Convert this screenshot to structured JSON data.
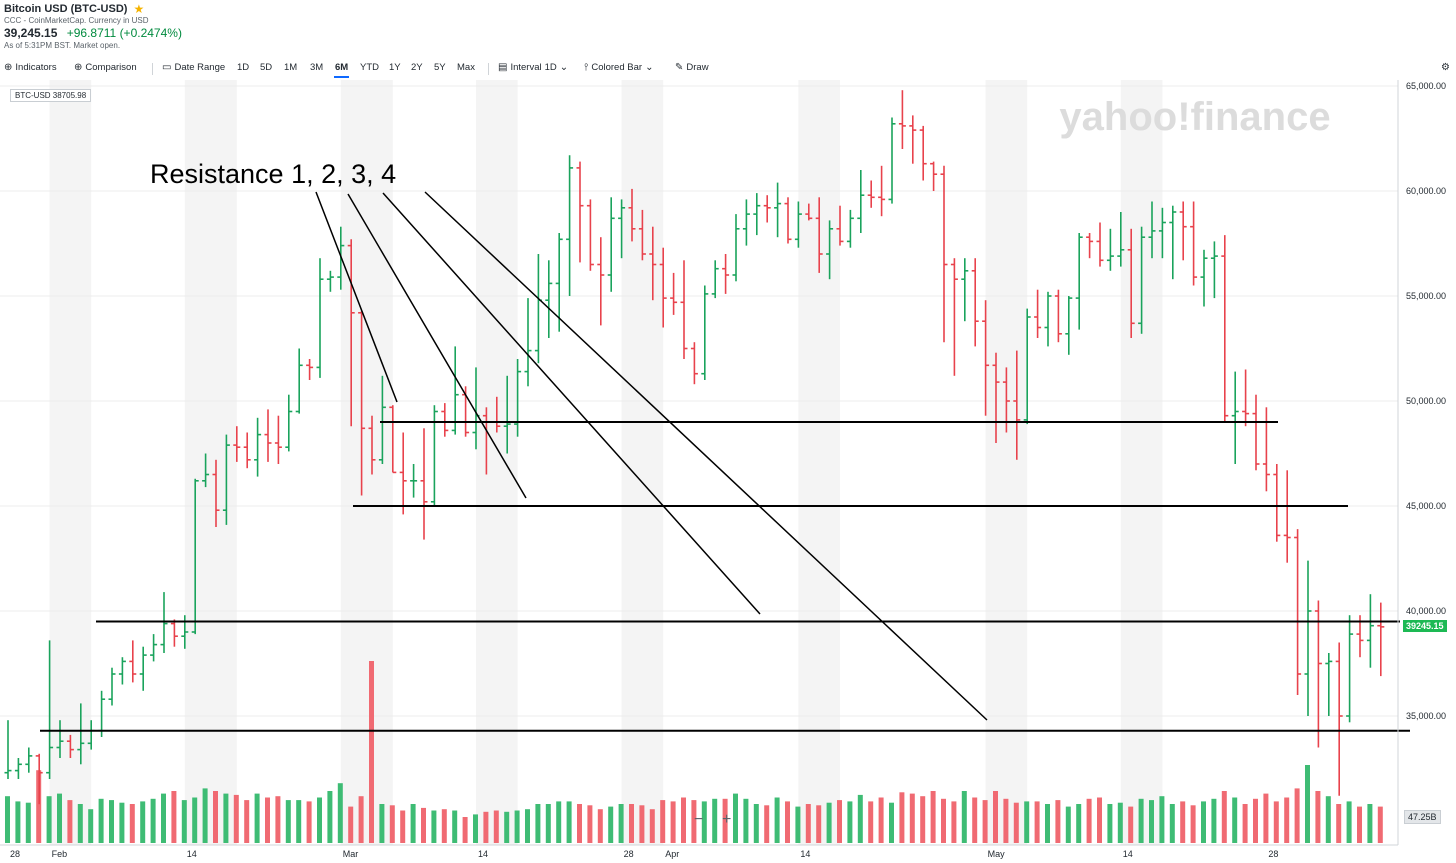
{
  "header": {
    "title": "Bitcoin USD (BTC-USD)",
    "source": "CCC - CoinMarketCap. Currency in USD",
    "price": "39,245.15",
    "change": "+96.8711 (+0.2474%)",
    "note": "As of 5:31PM BST. Market open."
  },
  "toolbar": {
    "indicators": "Indicators",
    "comparison": "Comparison",
    "date_range": "Date Range",
    "ranges": [
      "1D",
      "5D",
      "1M",
      "3M",
      "6M",
      "YTD",
      "1Y",
      "2Y",
      "5Y",
      "Max"
    ],
    "active_range": "6M",
    "interval_label": "Interval",
    "interval_value": "1D",
    "chart_type": "Colored Bar",
    "draw": "Draw"
  },
  "colors": {
    "up": "#1aa35c",
    "down": "#e8424c",
    "accent": "#0f69ff",
    "band": "#f4f4f4"
  },
  "watermark": "yahoo!finance",
  "chart_data": {
    "type": "ohlc",
    "symbol_badge": "BTC-USD 38705.98",
    "last_price_tag": "39245.15",
    "volume_tag": "47.25B",
    "ylim": [
      30000,
      65000
    ],
    "y_ticks": [
      "65,000.00",
      "60,000.00",
      "55,000.00",
      "50,000.00",
      "45,000.00",
      "40,000.00",
      "35,000.00"
    ],
    "y_tick_values": [
      65000,
      60000,
      55000,
      50000,
      45000,
      40000,
      35000
    ],
    "x_labels": [
      "28",
      "Feb",
      "14",
      "Mar",
      "14",
      "28",
      "Apr",
      "14",
      "May",
      "14",
      "28"
    ],
    "x_label_days": [
      0,
      4,
      17,
      32,
      45,
      59,
      63,
      76,
      94,
      107,
      121
    ],
    "shaded_day_ranges": [
      [
        4,
        8
      ],
      [
        17,
        22
      ],
      [
        32,
        37
      ],
      [
        45,
        49
      ],
      [
        59,
        63
      ],
      [
        76,
        80
      ],
      [
        94,
        98
      ],
      [
        107,
        111
      ]
    ],
    "annotation_text": "Resistance 1, 2, 3, 4",
    "resistance_levels": [
      49000,
      45000,
      39500,
      34300
    ],
    "bars": [
      [
        0,
        32300,
        34800,
        32000,
        32400
      ],
      [
        1,
        32400,
        33000,
        32000,
        32700
      ],
      [
        2,
        32700,
        33500,
        32300,
        33100
      ],
      [
        3,
        33100,
        33200,
        30800,
        32300
      ],
      [
        4,
        32300,
        38600,
        32000,
        33500
      ],
      [
        5,
        33500,
        34800,
        33000,
        33800
      ],
      [
        6,
        33800,
        34100,
        33000,
        33400
      ],
      [
        7,
        33400,
        35600,
        32700,
        33700
      ],
      [
        8,
        33700,
        34800,
        33400,
        34300
      ],
      [
        9,
        34300,
        36200,
        34000,
        35800
      ],
      [
        10,
        35800,
        37300,
        35500,
        37000
      ],
      [
        11,
        37000,
        37800,
        36500,
        37600
      ],
      [
        12,
        37600,
        38600,
        36600,
        37000
      ],
      [
        13,
        37000,
        38300,
        36200,
        37900
      ],
      [
        14,
        37900,
        38900,
        37600,
        38400
      ],
      [
        15,
        38400,
        40900,
        38000,
        39400
      ],
      [
        16,
        39400,
        39600,
        38300,
        38800
      ],
      [
        17,
        38800,
        39800,
        38200,
        39000
      ],
      [
        18,
        39000,
        46300,
        38900,
        46200
      ],
      [
        19,
        46200,
        47500,
        45900,
        46500
      ],
      [
        20,
        46500,
        47200,
        44000,
        44800
      ],
      [
        21,
        44800,
        48400,
        44100,
        47900
      ],
      [
        22,
        47900,
        48800,
        47100,
        47800
      ],
      [
        23,
        47800,
        48500,
        46800,
        47200
      ],
      [
        24,
        47200,
        49200,
        46400,
        48400
      ],
      [
        25,
        48400,
        49600,
        47100,
        48000
      ],
      [
        26,
        48000,
        49300,
        47000,
        47800
      ],
      [
        27,
        47800,
        50300,
        47600,
        49500
      ],
      [
        28,
        49500,
        52500,
        49400,
        51700
      ],
      [
        29,
        51700,
        52000,
        51000,
        51600
      ],
      [
        30,
        51600,
        56800,
        51100,
        55800
      ],
      [
        31,
        55800,
        56200,
        55200,
        55900
      ],
      [
        32,
        55900,
        58300,
        55300,
        57400
      ],
      [
        33,
        57400,
        57700,
        48800,
        54200
      ],
      [
        34,
        54200,
        54300,
        45500,
        48700
      ],
      [
        35,
        48700,
        49300,
        46500,
        47200
      ],
      [
        36,
        47200,
        51200,
        47000,
        49700
      ],
      [
        37,
        49700,
        49800,
        46600,
        46600
      ],
      [
        38,
        46600,
        48500,
        44600,
        46200
      ],
      [
        39,
        46200,
        47000,
        45400,
        46200
      ],
      [
        40,
        46200,
        48700,
        43400,
        45200
      ],
      [
        41,
        45200,
        49800,
        45000,
        49500
      ],
      [
        42,
        49500,
        49900,
        48300,
        48600
      ],
      [
        43,
        48600,
        52600,
        48400,
        50300
      ],
      [
        44,
        50300,
        50700,
        48300,
        48500
      ],
      [
        45,
        48500,
        51600,
        47700,
        49300
      ],
      [
        46,
        49300,
        49700,
        46500,
        49000
      ],
      [
        47,
        49000,
        50200,
        48500,
        48800
      ],
      [
        48,
        48800,
        51200,
        47500,
        48900
      ],
      [
        49,
        48900,
        52000,
        48300,
        51400
      ],
      [
        50,
        51400,
        54900,
        50700,
        52400
      ],
      [
        51,
        52400,
        57000,
        51800,
        54800
      ],
      [
        52,
        54800,
        56700,
        53000,
        55600
      ],
      [
        53,
        55600,
        58000,
        53300,
        57700
      ],
      [
        54,
        57700,
        61700,
        55000,
        61100
      ],
      [
        55,
        61100,
        61400,
        56600,
        59300
      ],
      [
        56,
        59300,
        59600,
        56200,
        56500
      ],
      [
        57,
        56500,
        57800,
        53600,
        56000
      ],
      [
        58,
        56000,
        59700,
        55200,
        58700
      ],
      [
        59,
        58700,
        59600,
        56800,
        59200
      ],
      [
        60,
        59200,
        60100,
        57600,
        58200
      ],
      [
        61,
        58200,
        59100,
        56700,
        57000
      ],
      [
        62,
        57000,
        58300,
        54800,
        56500
      ],
      [
        63,
        56500,
        57300,
        53500,
        54900
      ],
      [
        64,
        54900,
        56100,
        54100,
        54700
      ],
      [
        65,
        54700,
        56700,
        52000,
        52500
      ],
      [
        66,
        52500,
        52800,
        50800,
        51300
      ],
      [
        67,
        51300,
        55500,
        51000,
        55100
      ],
      [
        68,
        55100,
        56700,
        54900,
        56300
      ],
      [
        69,
        56300,
        57000,
        55100,
        56000
      ],
      [
        70,
        56000,
        58900,
        55700,
        58200
      ],
      [
        71,
        58200,
        59600,
        57400,
        58900
      ],
      [
        72,
        58900,
        59900,
        57900,
        59300
      ],
      [
        73,
        59300,
        59800,
        58500,
        59200
      ],
      [
        74,
        59200,
        60400,
        57800,
        59400
      ],
      [
        75,
        59400,
        59700,
        57500,
        57700
      ],
      [
        76,
        57700,
        59500,
        57300,
        58900
      ],
      [
        77,
        58900,
        59400,
        58600,
        58700
      ],
      [
        78,
        58700,
        59700,
        56100,
        57000
      ],
      [
        79,
        57000,
        58600,
        55800,
        58200
      ],
      [
        80,
        58200,
        59300,
        57400,
        57600
      ],
      [
        81,
        57600,
        59100,
        57300,
        58700
      ],
      [
        82,
        58700,
        61000,
        58000,
        59800
      ],
      [
        83,
        59800,
        60500,
        59200,
        59700
      ],
      [
        84,
        59700,
        61200,
        58800,
        59600
      ],
      [
        85,
        59600,
        63500,
        59400,
        63200
      ],
      [
        86,
        63200,
        64800,
        62000,
        63100
      ],
      [
        87,
        63100,
        63600,
        61300,
        62900
      ],
      [
        88,
        62900,
        63100,
        60500,
        61300
      ],
      [
        89,
        61300,
        61400,
        60000,
        60800
      ],
      [
        90,
        60800,
        61200,
        52800,
        56500
      ],
      [
        91,
        56500,
        56800,
        51200,
        55800
      ],
      [
        92,
        55800,
        56800,
        53800,
        56200
      ],
      [
        93,
        56200,
        56800,
        52600,
        53800
      ],
      [
        94,
        53800,
        54800,
        49300,
        51700
      ],
      [
        95,
        51700,
        52300,
        48000,
        50900
      ],
      [
        96,
        50900,
        51600,
        48500,
        50000
      ],
      [
        97,
        50000,
        52400,
        47200,
        49100
      ],
      [
        98,
        49100,
        54400,
        48900,
        54000
      ],
      [
        99,
        54000,
        55300,
        53000,
        53500
      ],
      [
        100,
        53500,
        55200,
        52600,
        55000
      ],
      [
        101,
        55000,
        55300,
        52800,
        53200
      ],
      [
        102,
        53200,
        55000,
        52200,
        54900
      ],
      [
        103,
        54900,
        58000,
        53400,
        57800
      ],
      [
        104,
        57800,
        58000,
        56800,
        57600
      ],
      [
        105,
        57600,
        58500,
        56400,
        56700
      ],
      [
        106,
        56700,
        58200,
        56200,
        56900
      ],
      [
        107,
        56900,
        59000,
        56400,
        57200
      ],
      [
        108,
        57200,
        58200,
        53000,
        53700
      ],
      [
        109,
        53700,
        58300,
        53200,
        57800
      ],
      [
        110,
        57800,
        59500,
        56800,
        58100
      ],
      [
        111,
        58100,
        59200,
        56800,
        58500
      ],
      [
        112,
        58500,
        59300,
        55800,
        59000
      ],
      [
        113,
        59000,
        59500,
        56700,
        58300
      ],
      [
        114,
        58300,
        59500,
        55500,
        55900
      ],
      [
        115,
        55900,
        57200,
        54500,
        56800
      ],
      [
        116,
        56800,
        57600,
        54900,
        56900
      ],
      [
        117,
        56900,
        57900,
        49000,
        49300
      ],
      [
        118,
        49300,
        51400,
        47000,
        49500
      ],
      [
        119,
        49500,
        51500,
        48800,
        49400
      ],
      [
        120,
        49400,
        50300,
        46700,
        47000
      ],
      [
        121,
        47000,
        49700,
        45700,
        46500
      ],
      [
        122,
        46500,
        47000,
        43300,
        43600
      ],
      [
        123,
        43600,
        46700,
        42300,
        43500
      ],
      [
        124,
        43500,
        43900,
        36000,
        37000
      ],
      [
        125,
        37000,
        42400,
        35000,
        40000
      ],
      [
        126,
        40000,
        40500,
        33500,
        37500
      ],
      [
        127,
        37500,
        38000,
        35000,
        37600
      ],
      [
        128,
        37600,
        38500,
        31200,
        35000
      ],
      [
        129,
        35000,
        39800,
        34700,
        38900
      ],
      [
        130,
        38900,
        39800,
        37800,
        38600
      ],
      [
        131,
        38600,
        40800,
        37300,
        39300
      ],
      [
        132,
        39300,
        40400,
        36900,
        39245
      ]
    ],
    "volume_ylim": [
      0,
      200
    ],
    "volumes": [
      36,
      32,
      31,
      56,
      36,
      38,
      33,
      30,
      26,
      34,
      33,
      31,
      30,
      32,
      34,
      38,
      40,
      33,
      35,
      42,
      40,
      38,
      37,
      33,
      38,
      35,
      36,
      33,
      33,
      32,
      35,
      40,
      46,
      28,
      36,
      140,
      30,
      29,
      25,
      30,
      27,
      25,
      26,
      25,
      20,
      22,
      24,
      25,
      24,
      25,
      26,
      30,
      30,
      32,
      32,
      30,
      29,
      26,
      28,
      30,
      30,
      29,
      26,
      33,
      32,
      35,
      33,
      32,
      34,
      34,
      38,
      34,
      30,
      29,
      35,
      32,
      28,
      30,
      29,
      31,
      33,
      32,
      37,
      32,
      35,
      31,
      39,
      38,
      36,
      40,
      34,
      32,
      40,
      35,
      33,
      40,
      34,
      31,
      32,
      32,
      30,
      33,
      28,
      30,
      34,
      35,
      30,
      31,
      28,
      34,
      33,
      36,
      30,
      32,
      29,
      32,
      34,
      40,
      35,
      30,
      34,
      38,
      32,
      35,
      42,
      60,
      40,
      36,
      30,
      32,
      28,
      30,
      28
    ]
  }
}
